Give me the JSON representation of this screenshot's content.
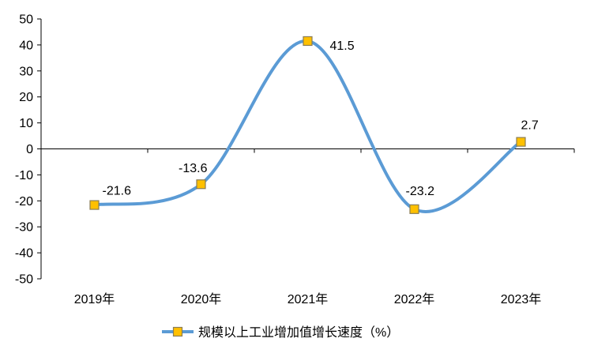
{
  "chart_data": {
    "type": "line",
    "smooth": true,
    "categories": [
      "2019年",
      "2020年",
      "2021年",
      "2022年",
      "2023年"
    ],
    "series": [
      {
        "name": "规模以上工业增加值增长速度（%）",
        "values": [
          -21.6,
          -13.6,
          41.5,
          -23.2,
          2.7
        ],
        "color": "#5B9BD5",
        "marker": "square",
        "marker_fill": "#FFC000",
        "marker_stroke": "#8A7D55"
      }
    ],
    "data_labels": true,
    "ylim": [
      -50,
      50
    ],
    "yticks": [
      50,
      40,
      30,
      20,
      10,
      0,
      -10,
      -20,
      -30,
      -40,
      -50
    ],
    "grid": false,
    "legend": "bottom"
  }
}
